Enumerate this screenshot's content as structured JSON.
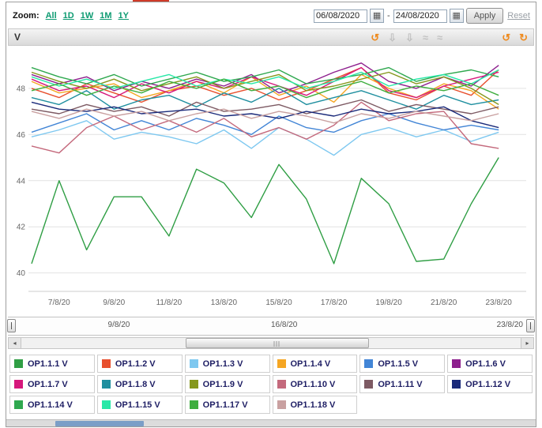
{
  "toolbar": {
    "zoom_label": "Zoom:",
    "zoom_options": [
      "All",
      "1D",
      "1W",
      "1M",
      "1Y"
    ],
    "zoom_link_color": "#0e9b72",
    "date_from": "06/08/2020",
    "date_to": "24/08/2020",
    "separator": "-",
    "apply_label": "Apply",
    "reset_label": "Reset"
  },
  "icons": {
    "calendar": "▦",
    "scroll-left": "◂",
    "scroll-right": "▸"
  },
  "chart_header": {
    "title": "V",
    "icons": [
      {
        "name": "refresh-icon",
        "glyph": "↺",
        "color": "#ef8a1d",
        "faded": false
      },
      {
        "name": "download-image-icon",
        "glyph": "⇩",
        "color": "#777777",
        "faded": true
      },
      {
        "name": "download-data-icon",
        "glyph": "⇩",
        "color": "#777777",
        "faded": true
      },
      {
        "name": "annotation-icon-1",
        "glyph": "≈",
        "color": "#777777",
        "faded": true
      },
      {
        "name": "annotation-icon-2",
        "glyph": "≈",
        "color": "#777777",
        "faded": true
      },
      {
        "name": "rotate-left-icon",
        "glyph": "↺",
        "color": "#ef8a1d",
        "faded": false
      },
      {
        "name": "rotate-right-icon",
        "glyph": "↻",
        "color": "#ef8a1d",
        "faded": false
      }
    ]
  },
  "navigator": {
    "labels": [
      "9/8/20",
      "16/8/20",
      "23/8/20"
    ]
  },
  "chart_data": {
    "type": "line",
    "title": "",
    "xlabel": "",
    "ylabel": "V",
    "grid": true,
    "legend_position": "bottom",
    "xlim": [
      6,
      24
    ],
    "ylim": [
      39.2,
      49.4
    ],
    "yticks": [
      40,
      42,
      44,
      46,
      48
    ],
    "x_days": [
      6,
      7,
      8,
      9,
      10,
      11,
      12,
      13,
      14,
      15,
      16,
      17,
      18,
      19,
      20,
      21,
      22,
      23
    ],
    "x_ticks": [
      {
        "day": 7,
        "label": "7/8/20"
      },
      {
        "day": 9,
        "label": "9/8/20"
      },
      {
        "day": 11,
        "label": "11/8/20"
      },
      {
        "day": 13,
        "label": "13/8/20"
      },
      {
        "day": 15,
        "label": "15/8/20"
      },
      {
        "day": 17,
        "label": "17/8/20"
      },
      {
        "day": 19,
        "label": "19/8/20"
      },
      {
        "day": 21,
        "label": "21/8/20"
      },
      {
        "day": 23,
        "label": "23/8/20"
      }
    ],
    "series": [
      {
        "name": "OP1.1.1 V",
        "color": "#2f9e44",
        "values": [
          40.4,
          44.0,
          41.0,
          43.3,
          43.3,
          41.6,
          44.5,
          43.9,
          42.4,
          44.7,
          43.2,
          40.4,
          44.1,
          43.0,
          40.5,
          40.6,
          43.0,
          45.0
        ]
      },
      {
        "name": "OP1.1.2 V",
        "color": "#e8502e",
        "values": [
          48.0,
          47.6,
          48.2,
          47.8,
          47.4,
          47.9,
          48.1,
          47.7,
          48.0,
          47.5,
          47.9,
          48.4,
          48.9,
          47.8,
          47.5,
          48.1,
          47.7,
          48.8
        ]
      },
      {
        "name": "OP1.1.3 V",
        "color": "#7ec8f0",
        "values": [
          45.9,
          46.2,
          46.6,
          45.8,
          46.1,
          45.9,
          45.6,
          46.2,
          45.4,
          46.3,
          45.8,
          45.1,
          46.0,
          46.3,
          45.9,
          46.2,
          45.7,
          46.1
        ]
      },
      {
        "name": "OP1.1.4 V",
        "color": "#f5a623",
        "values": [
          48.3,
          47.8,
          48.0,
          48.2,
          47.6,
          47.9,
          48.3,
          47.8,
          48.5,
          47.7,
          48.1,
          47.4,
          48.6,
          48.0,
          47.6,
          48.2,
          47.9,
          47.1
        ]
      },
      {
        "name": "OP1.1.5 V",
        "color": "#4285d6",
        "values": [
          46.1,
          46.5,
          46.9,
          46.2,
          46.6,
          46.2,
          46.7,
          46.4,
          46.0,
          46.8,
          46.3,
          46.1,
          46.6,
          46.9,
          46.5,
          46.2,
          46.4,
          46.2
        ]
      },
      {
        "name": "OP1.1.6 V",
        "color": "#8d1f8d",
        "values": [
          48.6,
          48.2,
          48.5,
          47.9,
          48.3,
          48.0,
          48.4,
          48.1,
          48.6,
          47.8,
          48.2,
          48.7,
          49.1,
          48.3,
          48.0,
          48.5,
          48.1,
          49.0
        ]
      },
      {
        "name": "OP1.1.7 V",
        "color": "#d6187c",
        "values": [
          48.4,
          47.9,
          48.1,
          47.6,
          48.2,
          47.8,
          48.3,
          48.0,
          48.5,
          48.1,
          47.7,
          48.3,
          48.9,
          47.9,
          47.6,
          48.1,
          48.4,
          48.7
        ]
      },
      {
        "name": "OP1.1.8 V",
        "color": "#1f8f9f",
        "values": [
          47.6,
          47.3,
          47.9,
          47.1,
          47.5,
          47.7,
          47.2,
          47.8,
          47.4,
          48.0,
          47.3,
          47.6,
          47.9,
          47.5,
          47.1,
          47.7,
          47.3,
          47.5
        ]
      },
      {
        "name": "OP1.1.9 V",
        "color": "#85971c",
        "values": [
          48.7,
          48.3,
          48.0,
          48.4,
          47.9,
          48.2,
          48.5,
          48.0,
          48.3,
          48.6,
          47.9,
          48.1,
          48.4,
          48.7,
          48.2,
          48.5,
          48.0,
          47.3
        ]
      },
      {
        "name": "OP1.1.10 V",
        "color": "#c4697c",
        "values": [
          45.5,
          45.2,
          46.3,
          46.8,
          46.2,
          46.6,
          46.1,
          46.7,
          45.9,
          46.3,
          45.8,
          46.4,
          47.4,
          46.6,
          46.9,
          47.0,
          45.6,
          45.4
        ]
      },
      {
        "name": "OP1.1.11 V",
        "color": "#7d5a63",
        "values": [
          47.1,
          46.9,
          47.3,
          47.0,
          47.2,
          46.8,
          47.4,
          47.0,
          47.1,
          47.3,
          46.9,
          47.2,
          47.5,
          47.0,
          47.3,
          47.1,
          46.9,
          47.2
        ]
      },
      {
        "name": "OP1.1.12 V",
        "color": "#1a2a7a",
        "values": [
          47.4,
          47.1,
          47.0,
          47.2,
          46.9,
          47.0,
          47.1,
          46.8,
          46.9,
          46.7,
          47.0,
          46.8,
          47.1,
          46.9,
          47.0,
          47.2,
          46.6,
          46.3
        ]
      },
      {
        "name": "OP1.1.14 V",
        "color": "#2fa84f",
        "values": [
          48.9,
          48.5,
          48.2,
          48.6,
          48.1,
          48.4,
          48.7,
          48.3,
          48.5,
          48.8,
          48.2,
          48.4,
          48.6,
          48.9,
          48.3,
          48.6,
          48.8,
          48.5
        ]
      },
      {
        "name": "OP1.1.15 V",
        "color": "#27e8a7",
        "values": [
          48.5,
          48.1,
          48.4,
          48.0,
          48.3,
          48.6,
          48.1,
          48.4,
          48.2,
          48.5,
          48.0,
          48.3,
          48.7,
          48.1,
          48.4,
          48.6,
          48.2,
          48.8
        ]
      },
      {
        "name": "OP1.1.17 V",
        "color": "#3fae3f",
        "values": [
          47.9,
          48.2,
          47.7,
          48.1,
          47.8,
          48.3,
          48.0,
          48.4,
          47.9,
          48.1,
          47.6,
          48.0,
          48.3,
          47.8,
          48.1,
          47.9,
          48.2,
          47.7
        ]
      },
      {
        "name": "OP1.1.18 V",
        "color": "#c9a0a0",
        "values": [
          47.0,
          46.7,
          47.1,
          46.8,
          47.0,
          46.6,
          46.9,
          47.1,
          46.7,
          47.0,
          46.8,
          46.5,
          46.9,
          46.7,
          47.0,
          46.8,
          46.6,
          46.9
        ]
      }
    ]
  }
}
